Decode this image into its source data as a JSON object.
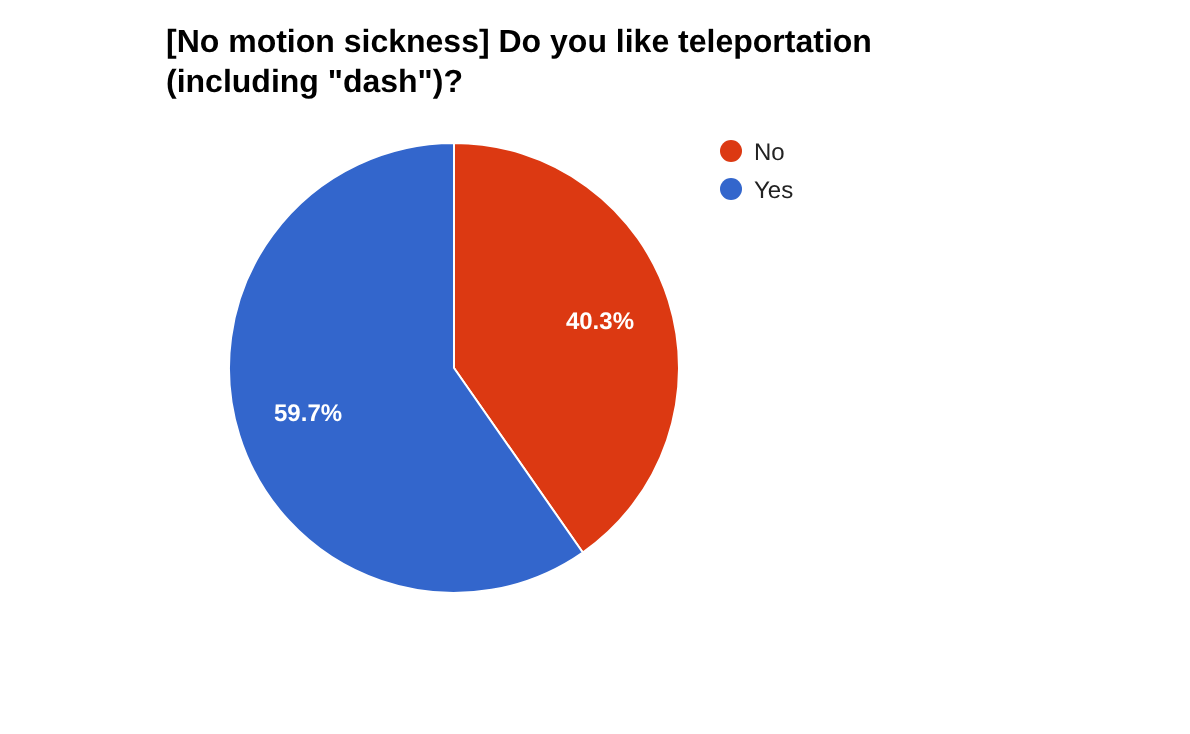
{
  "chart_data": {
    "type": "pie",
    "title": "[No motion sickness] Do you like teleportation (including \"dash\")?",
    "categories": [
      "No",
      "Yes"
    ],
    "values": [
      40.3,
      59.7
    ],
    "colors": [
      "#dc3912",
      "#3366cc"
    ],
    "value_labels": [
      "40.3%",
      "59.7%"
    ],
    "legend": "top right"
  }
}
